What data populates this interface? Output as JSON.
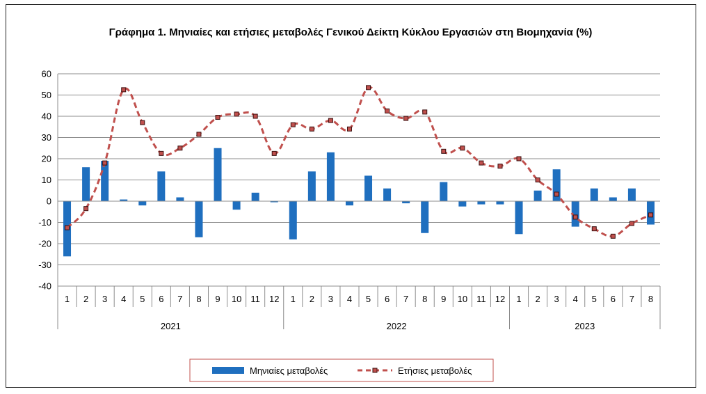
{
  "chart_data": {
    "type": "bar",
    "title": "Γράφημα 1. Μηνιαίες και ετήσιες μεταβολές  Γενικού Δείκτη Κύκλου Εργασιών στη Βιομηχανία (%)",
    "xlabel": "",
    "ylabel": "",
    "ylim": [
      -40,
      60
    ],
    "yticks": [
      "60",
      "50",
      "40",
      "30",
      "20",
      "10",
      "0",
      "-10",
      "-20",
      "-30",
      "-40"
    ],
    "grid": true,
    "legend_position": "bottom",
    "categories": [
      "1",
      "2",
      "3",
      "4",
      "5",
      "6",
      "7",
      "8",
      "9",
      "10",
      "11",
      "12",
      "1",
      "2",
      "3",
      "4",
      "5",
      "6",
      "7",
      "8",
      "9",
      "10",
      "11",
      "12",
      "1",
      "2",
      "3",
      "4",
      "5",
      "6",
      "7",
      "8"
    ],
    "year_groups": [
      {
        "label": "2021",
        "count": 12
      },
      {
        "label": "2022",
        "count": 12
      },
      {
        "label": "2023",
        "count": 8
      }
    ],
    "series": [
      {
        "name": "Μηνιαίες μεταβολές",
        "type": "bar",
        "color": "#1F6FBF",
        "values": [
          -26,
          16,
          19,
          0.8,
          -2,
          14,
          1.8,
          -17,
          25,
          -4,
          4,
          -0.5,
          -18,
          14,
          23,
          -2,
          12,
          6,
          -1,
          -15,
          9,
          -2.5,
          -1.5,
          -1.5,
          -15.5,
          5,
          15,
          -12,
          6,
          1.8,
          6,
          -11
        ]
      },
      {
        "name": "Ετήσιες μεταβολές",
        "type": "line",
        "color": "#C0504D",
        "values": [
          -12.5,
          -3.5,
          18,
          52.5,
          37,
          22.5,
          25,
          31.5,
          39.5,
          41,
          40,
          22.5,
          36,
          34,
          38,
          34,
          53.5,
          42.5,
          39,
          42,
          23.5,
          25,
          18,
          16.5,
          20,
          10,
          3.3,
          -7.5,
          -13,
          -16.5,
          -10.5,
          -6.5
        ]
      }
    ]
  }
}
